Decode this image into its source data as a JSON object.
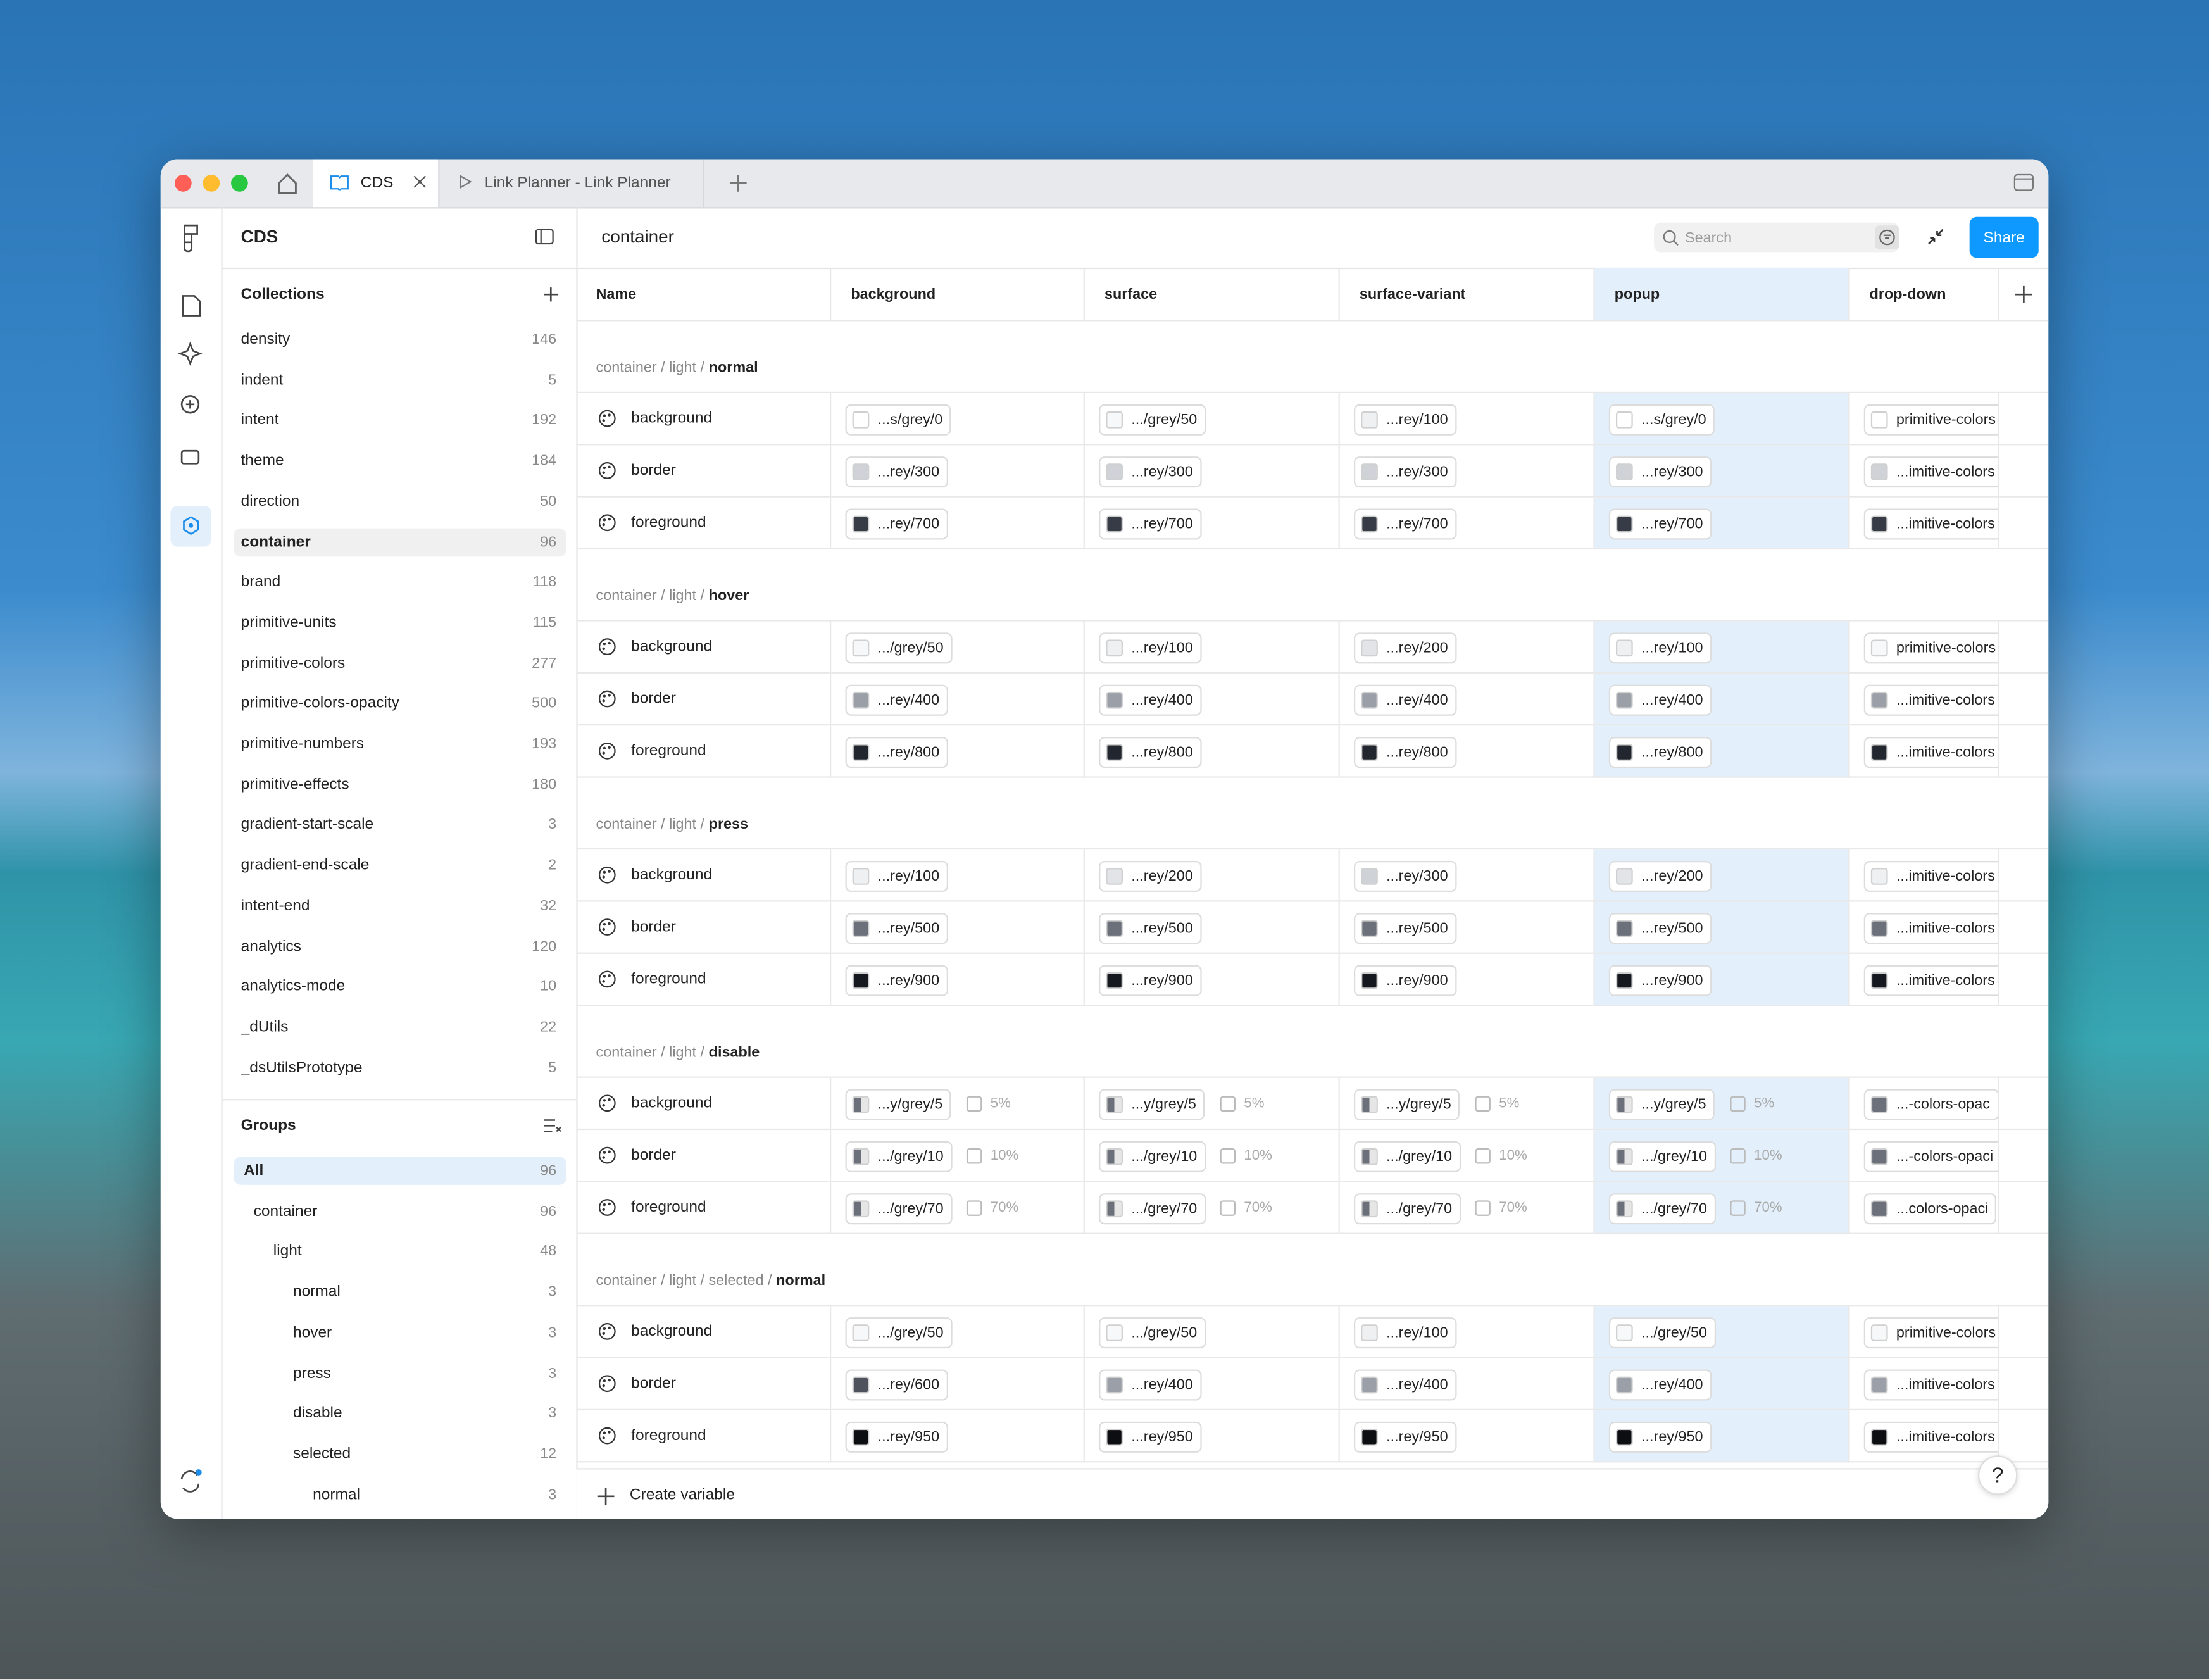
{
  "window": {
    "tabs": [
      {
        "label": "CDS",
        "active": true
      },
      {
        "label": "Link Planner - Link Planner",
        "active": false
      }
    ]
  },
  "sidebar": {
    "title": "CDS",
    "collections_title": "Collections",
    "collections": [
      {
        "name": "density",
        "count": 146
      },
      {
        "name": "indent",
        "count": 5
      },
      {
        "name": "intent",
        "count": 192
      },
      {
        "name": "theme",
        "count": 184
      },
      {
        "name": "direction",
        "count": 50
      },
      {
        "name": "container",
        "count": 96,
        "selected": true
      },
      {
        "name": "brand",
        "count": 118
      },
      {
        "name": "primitive-units",
        "count": 115
      },
      {
        "name": "primitive-colors",
        "count": 277
      },
      {
        "name": "primitive-colors-opacity",
        "count": 500
      },
      {
        "name": "primitive-numbers",
        "count": 193
      },
      {
        "name": "primitive-effects",
        "count": 180
      },
      {
        "name": "gradient-start-scale",
        "count": 3
      },
      {
        "name": "gradient-end-scale",
        "count": 2
      },
      {
        "name": "intent-end",
        "count": 32
      },
      {
        "name": "analytics",
        "count": 120
      },
      {
        "name": "analytics-mode",
        "count": 10
      },
      {
        "name": "_dUtils",
        "count": 22
      },
      {
        "name": "_dsUtilsPrototype",
        "count": 5
      }
    ],
    "groups_title": "Groups",
    "groups": [
      {
        "name": "All",
        "count": 96,
        "level": 0,
        "selected": true
      },
      {
        "name": "container",
        "count": 96,
        "level": 1
      },
      {
        "name": "light",
        "count": 48,
        "level": 2
      },
      {
        "name": "normal",
        "count": 3,
        "level": 3
      },
      {
        "name": "hover",
        "count": 3,
        "level": 3
      },
      {
        "name": "press",
        "count": 3,
        "level": 3
      },
      {
        "name": "disable",
        "count": 3,
        "level": 3
      },
      {
        "name": "selected",
        "count": 12,
        "level": 3
      },
      {
        "name": "normal",
        "count": 3,
        "level": 4
      }
    ]
  },
  "main": {
    "title": "container",
    "search_placeholder": "Search",
    "share": "Share",
    "columns": [
      {
        "label": "Name"
      },
      {
        "label": "background"
      },
      {
        "label": "surface"
      },
      {
        "label": "surface-variant"
      },
      {
        "label": "popup",
        "highlight": true
      },
      {
        "label": "drop-down"
      }
    ],
    "sections": [
      {
        "path": "container / light /",
        "state": "normal",
        "rows": [
          {
            "name": "background",
            "cells": [
              {
                "value": "...s/grey/0",
                "swatch": "#ffffff"
              },
              {
                "value": ".../grey/50",
                "swatch": "#f7f8f9"
              },
              {
                "value": "...rey/100",
                "swatch": "#eef0f2"
              },
              {
                "value": "...s/grey/0",
                "swatch": "#ffffff"
              },
              {
                "value": "primitive-colors",
                "swatch": "#ffffff"
              }
            ]
          },
          {
            "name": "border",
            "cells": [
              {
                "value": "...rey/300",
                "swatch": "#cfd2d7"
              },
              {
                "value": "...rey/300",
                "swatch": "#cfd2d7"
              },
              {
                "value": "...rey/300",
                "swatch": "#cfd2d7"
              },
              {
                "value": "...rey/300",
                "swatch": "#cfd2d7"
              },
              {
                "value": "...imitive-colors",
                "swatch": "#cfd2d7"
              }
            ]
          },
          {
            "name": "foreground",
            "cells": [
              {
                "value": "...rey/700",
                "swatch": "#363b45"
              },
              {
                "value": "...rey/700",
                "swatch": "#363b45"
              },
              {
                "value": "...rey/700",
                "swatch": "#363b45"
              },
              {
                "value": "...rey/700",
                "swatch": "#363b45"
              },
              {
                "value": "...imitive-colors",
                "swatch": "#363b45"
              }
            ]
          }
        ]
      },
      {
        "path": "container / light /",
        "state": "hover",
        "rows": [
          {
            "name": "background",
            "cells": [
              {
                "value": ".../grey/50",
                "swatch": "#f7f8f9"
              },
              {
                "value": "...rey/100",
                "swatch": "#eef0f2"
              },
              {
                "value": "...rey/200",
                "swatch": "#e2e4e8"
              },
              {
                "value": "...rey/100",
                "swatch": "#eef0f2"
              },
              {
                "value": "primitive-colors",
                "swatch": "#f7f8f9"
              }
            ]
          },
          {
            "name": "border",
            "cells": [
              {
                "value": "...rey/400",
                "swatch": "#9ba0a8"
              },
              {
                "value": "...rey/400",
                "swatch": "#9ba0a8"
              },
              {
                "value": "...rey/400",
                "swatch": "#9ba0a8"
              },
              {
                "value": "...rey/400",
                "swatch": "#9ba0a8"
              },
              {
                "value": "...imitive-colors",
                "swatch": "#9ba0a8"
              }
            ]
          },
          {
            "name": "foreground",
            "cells": [
              {
                "value": "...rey/800",
                "swatch": "#22262e"
              },
              {
                "value": "...rey/800",
                "swatch": "#22262e"
              },
              {
                "value": "...rey/800",
                "swatch": "#22262e"
              },
              {
                "value": "...rey/800",
                "swatch": "#22262e"
              },
              {
                "value": "...imitive-colors",
                "swatch": "#22262e"
              }
            ]
          }
        ]
      },
      {
        "path": "container / light /",
        "state": "press",
        "rows": [
          {
            "name": "background",
            "cells": [
              {
                "value": "...rey/100",
                "swatch": "#eef0f2"
              },
              {
                "value": "...rey/200",
                "swatch": "#e2e4e8"
              },
              {
                "value": "...rey/300",
                "swatch": "#cfd2d7"
              },
              {
                "value": "...rey/200",
                "swatch": "#e2e4e8"
              },
              {
                "value": "...imitive-colors",
                "swatch": "#eef0f2"
              }
            ]
          },
          {
            "name": "border",
            "cells": [
              {
                "value": "...rey/500",
                "swatch": "#6b707a"
              },
              {
                "value": "...rey/500",
                "swatch": "#6b707a"
              },
              {
                "value": "...rey/500",
                "swatch": "#6b707a"
              },
              {
                "value": "...rey/500",
                "swatch": "#6b707a"
              },
              {
                "value": "...imitive-colors",
                "swatch": "#6b707a"
              }
            ]
          },
          {
            "name": "foreground",
            "cells": [
              {
                "value": "...rey/900",
                "swatch": "#15181e"
              },
              {
                "value": "...rey/900",
                "swatch": "#15181e"
              },
              {
                "value": "...rey/900",
                "swatch": "#15181e"
              },
              {
                "value": "...rey/900",
                "swatch": "#15181e"
              },
              {
                "value": "...imitive-colors",
                "swatch": "#15181e"
              }
            ]
          }
        ]
      },
      {
        "path": "container / light /",
        "state": "disable",
        "rows": [
          {
            "name": "background",
            "cells": [
              {
                "value": "...y/grey/5",
                "swatch": "#6b707a",
                "opacity": "5%"
              },
              {
                "value": "...y/grey/5",
                "swatch": "#6b707a",
                "opacity": "5%"
              },
              {
                "value": "...y/grey/5",
                "swatch": "#6b707a",
                "opacity": "5%"
              },
              {
                "value": "...y/grey/5",
                "swatch": "#6b707a",
                "opacity": "5%"
              },
              {
                "value": "...-colors-opac",
                "swatch": "#6b707a"
              }
            ]
          },
          {
            "name": "border",
            "cells": [
              {
                "value": ".../grey/10",
                "swatch": "#6b707a",
                "opacity": "10%"
              },
              {
                "value": ".../grey/10",
                "swatch": "#6b707a",
                "opacity": "10%"
              },
              {
                "value": ".../grey/10",
                "swatch": "#6b707a",
                "opacity": "10%"
              },
              {
                "value": ".../grey/10",
                "swatch": "#6b707a",
                "opacity": "10%"
              },
              {
                "value": "...-colors-opaci",
                "swatch": "#6b707a"
              }
            ]
          },
          {
            "name": "foreground",
            "cells": [
              {
                "value": ".../grey/70",
                "swatch": "#6b707a",
                "opacity": "70%"
              },
              {
                "value": ".../grey/70",
                "swatch": "#6b707a",
                "opacity": "70%"
              },
              {
                "value": ".../grey/70",
                "swatch": "#6b707a",
                "opacity": "70%"
              },
              {
                "value": ".../grey/70",
                "swatch": "#6b707a",
                "opacity": "70%"
              },
              {
                "value": "...colors-opaci",
                "swatch": "#6b707a"
              }
            ]
          }
        ]
      },
      {
        "path": "container / light / selected /",
        "state": "normal",
        "rows": [
          {
            "name": "background",
            "cells": [
              {
                "value": ".../grey/50",
                "swatch": "#f7f8f9"
              },
              {
                "value": ".../grey/50",
                "swatch": "#f7f8f9"
              },
              {
                "value": "...rey/100",
                "swatch": "#eef0f2"
              },
              {
                "value": ".../grey/50",
                "swatch": "#f7f8f9"
              },
              {
                "value": "primitive-colors",
                "swatch": "#f7f8f9"
              }
            ]
          },
          {
            "name": "border",
            "cells": [
              {
                "value": "...rey/600",
                "swatch": "#4d525c"
              },
              {
                "value": "...rey/400",
                "swatch": "#9ba0a8"
              },
              {
                "value": "...rey/400",
                "swatch": "#9ba0a8"
              },
              {
                "value": "...rey/400",
                "swatch": "#9ba0a8"
              },
              {
                "value": "...imitive-colors",
                "swatch": "#9ba0a8"
              }
            ]
          },
          {
            "name": "foreground",
            "cells": [
              {
                "value": "...rey/950",
                "swatch": "#0c0e12"
              },
              {
                "value": "...rey/950",
                "swatch": "#0c0e12"
              },
              {
                "value": "...rey/950",
                "swatch": "#0c0e12"
              },
              {
                "value": "...rey/950",
                "swatch": "#0c0e12"
              },
              {
                "value": "...imitive-colors",
                "swatch": "#0c0e12"
              }
            ]
          }
        ]
      }
    ],
    "create_variable": "Create variable",
    "help": "?"
  }
}
